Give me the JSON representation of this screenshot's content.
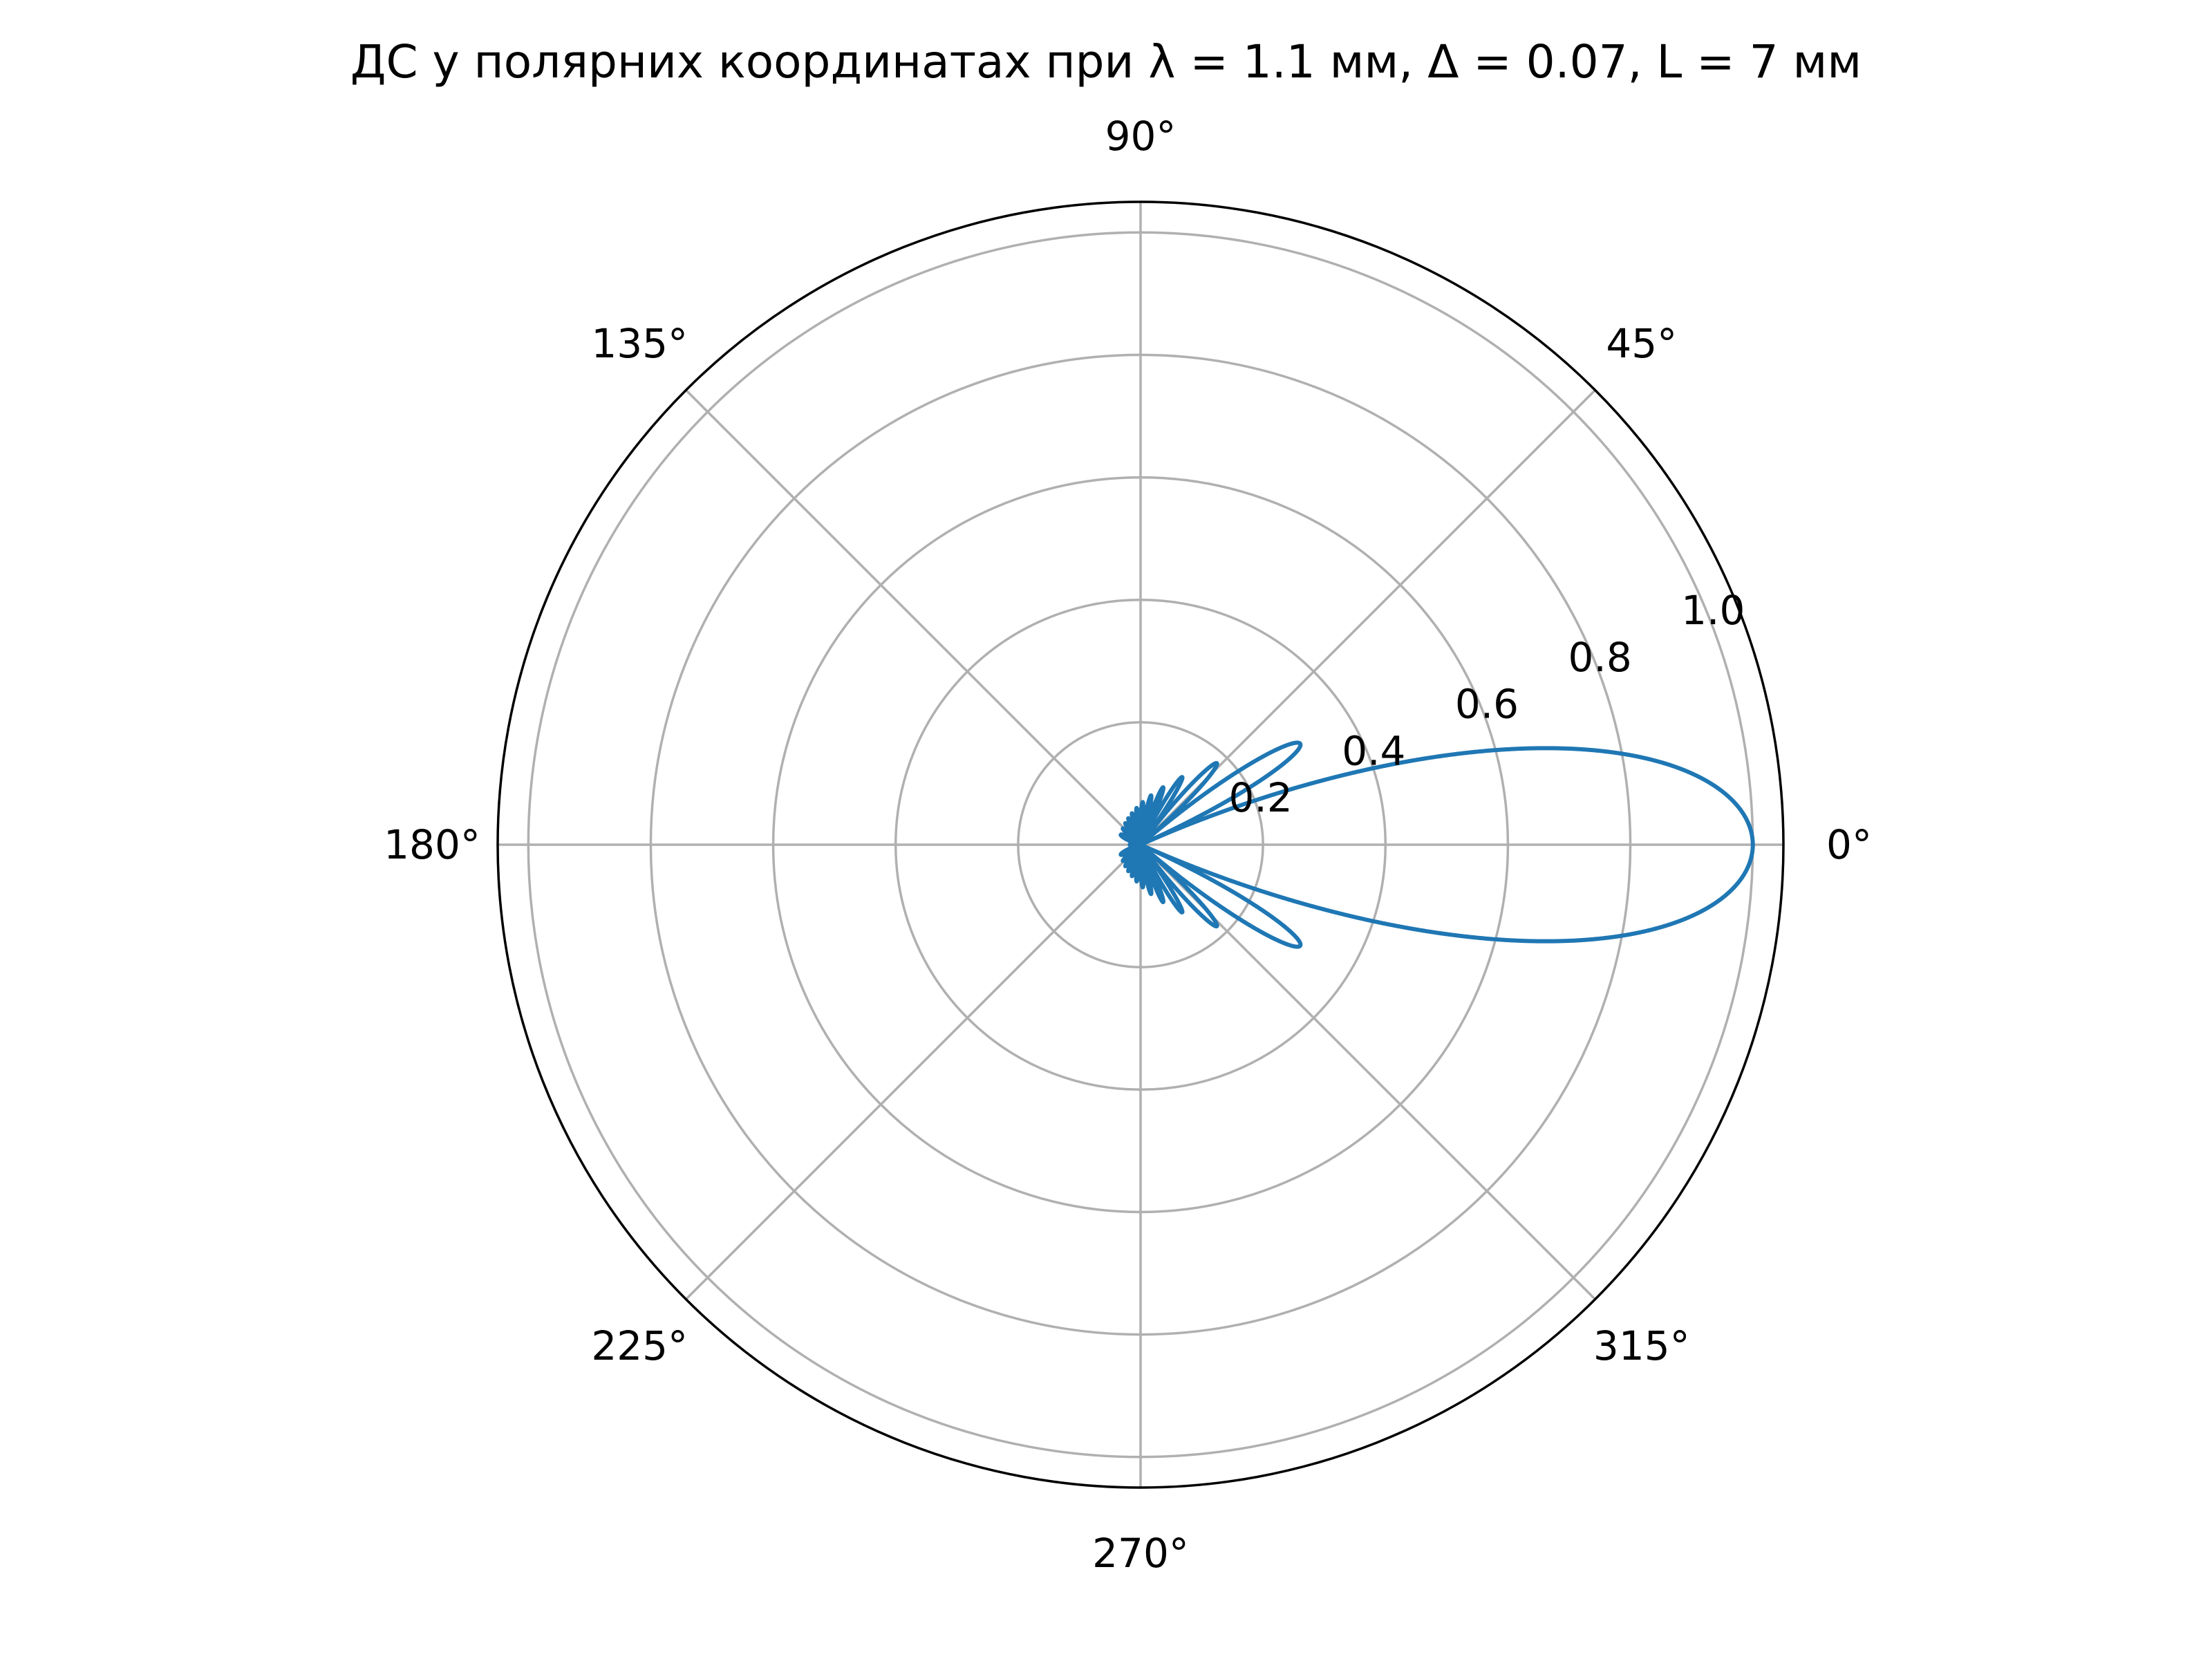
{
  "chart_data": {
    "type": "line",
    "projection": "polar",
    "title": "ДС у полярних координатах при λ = 1.1 мм, Δ = 0.07, L = 7 мм",
    "xlabel": "",
    "ylabel": "",
    "angle_ticks": [
      {
        "deg": 0,
        "label": "0°"
      },
      {
        "deg": 45,
        "label": "45°"
      },
      {
        "deg": 90,
        "label": "90°"
      },
      {
        "deg": 135,
        "label": "135°"
      },
      {
        "deg": 180,
        "label": "180°"
      },
      {
        "deg": 225,
        "label": "225°"
      },
      {
        "deg": 270,
        "label": "270°"
      },
      {
        "deg": 315,
        "label": "315°"
      }
    ],
    "radial_ticks": [
      {
        "r": 0.2,
        "label": "0.2"
      },
      {
        "r": 0.4,
        "label": "0.4"
      },
      {
        "r": 0.6,
        "label": "0.6"
      },
      {
        "r": 0.8,
        "label": "0.8"
      },
      {
        "r": 1.0,
        "label": "1.0"
      }
    ],
    "rlim": [
      0,
      1.05
    ],
    "grid": true,
    "series": [
      {
        "color": "#1f77b4",
        "model": {
          "wavelength_mm": 1.1,
          "delta": 0.07,
          "length_mm": 7,
          "angle_range_deg": [
            0,
            360
          ],
          "peak_value": 1.0,
          "main_lobe_direction_deg": 0
        }
      }
    ]
  },
  "colors": {
    "grid": "#b0b0b0",
    "frame": "#000000",
    "series": "#1f77b4"
  }
}
